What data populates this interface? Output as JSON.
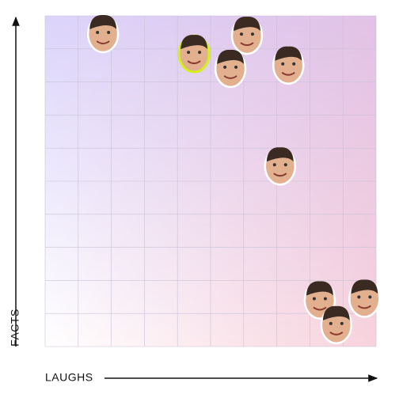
{
  "chart_data": {
    "type": "scatter",
    "x_label": "LAUGHS",
    "y_label": "FACTS",
    "x": [
      1.75,
      4.5,
      6.1,
      5.6,
      7.35,
      7.1,
      8.3,
      9.65,
      8.8
    ],
    "values": [
      9.45,
      8.85,
      9.4,
      8.4,
      8.5,
      5.45,
      1.4,
      1.45,
      0.65
    ],
    "color": "#e3b08f",
    "highlight_color": "#d4f01c",
    "highlight_index": 1,
    "xlim": [
      0,
      10
    ],
    "ylim": [
      0,
      10
    ],
    "xticks": [
      0,
      1,
      2,
      3,
      4,
      5,
      6,
      7,
      8,
      9,
      10
    ],
    "yticks": [
      0,
      1,
      2,
      3,
      4,
      5,
      6,
      7,
      8,
      9,
      10
    ],
    "grid": true
  }
}
